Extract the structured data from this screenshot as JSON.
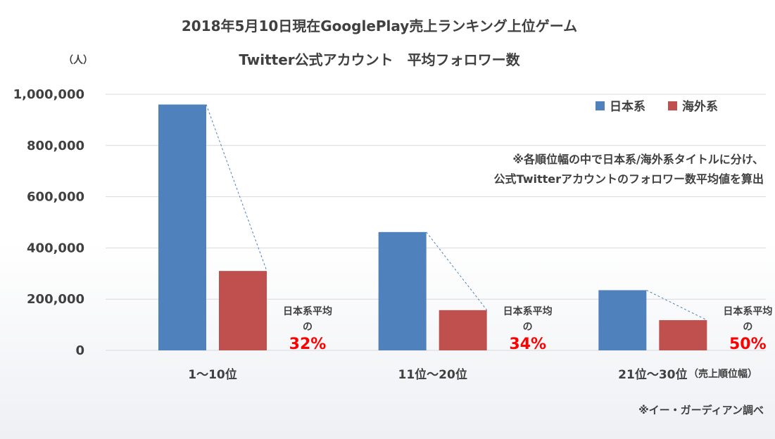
{
  "chart_data": {
    "type": "bar",
    "title_line1": "2018年5月10日現在GooglePlay売上ランキング上位ゲーム",
    "title_line2": "Twitter公式アカウント　平均フォロワー数",
    "ylabel": "（人）",
    "xlabel_suffix": "（売上順位幅）",
    "ylim": [
      0,
      1000000
    ],
    "yticks": [
      "0",
      "200,000",
      "400,000",
      "600,000",
      "800,000",
      "1,000,000"
    ],
    "grid": true,
    "legend_position": "top-right",
    "categories": [
      "1～10位",
      "11位～20位",
      "21位～30位"
    ],
    "series": [
      {
        "name": "日本系",
        "color": "#4f81bd",
        "values": [
          960000,
          462000,
          235000
        ]
      },
      {
        "name": "海外系",
        "color": "#c0504d",
        "values": [
          310000,
          157000,
          118000
        ]
      }
    ],
    "annotations": [
      {
        "label_line1": "日本系平均",
        "label_line2": "の",
        "percent": "32%"
      },
      {
        "label_line1": "日本系平均",
        "label_line2": "の",
        "percent": "34%"
      },
      {
        "label_line1": "日本系平均",
        "label_line2": "の",
        "percent": "50%"
      }
    ],
    "note_line1": "※各順位幅の中で日本系/海外系タイトルに分け、",
    "note_line2": "公式Twitterアカウントのフォロワー数平均値を算出",
    "source": "※イー・ガーディアン調べ"
  }
}
